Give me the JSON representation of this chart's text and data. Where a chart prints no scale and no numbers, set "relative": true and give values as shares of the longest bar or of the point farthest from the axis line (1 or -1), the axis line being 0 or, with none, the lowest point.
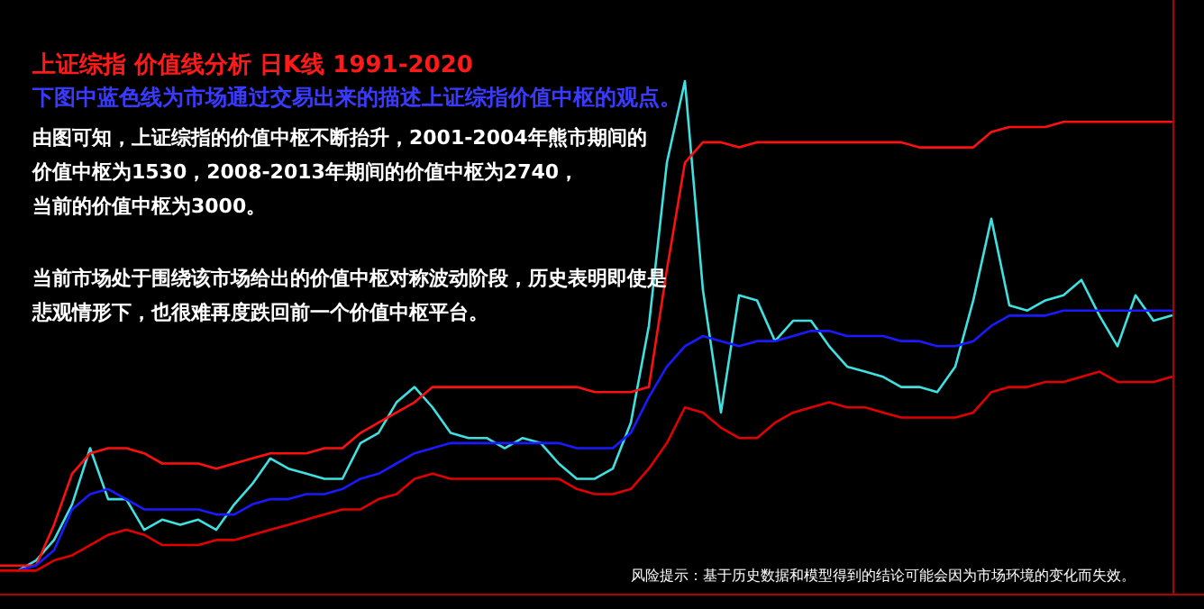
{
  "chart_data": {
    "type": "line",
    "relative": true,
    "title": "上证综指     价值线分析     日K线  1991-2020",
    "subtitle": "下图中蓝色线为市场通过交易出来的描述上证综指价值中枢的观点。",
    "annotations": [
      "由图可知，上证综指的价值中枢不断抬升，2001-2004年熊市期间的",
      "价值中枢为1530，2008-2013年期间的价值中枢为2740，",
      "当前的价值中枢为3000。",
      "当前市场处于围绕该市场给出的价值中枢对称波动阶段，历史表明即使是",
      "悲观情形下，也很难再度跌回前一个价值中枢平台。",
      "风险提示：基于历史数据和模型得到的结论可能会因为市场环境的变化而失效。"
    ],
    "categories": [
      null,
      null,
      null,
      null,
      null,
      null,
      null,
      null,
      null,
      null,
      null,
      null,
      null,
      null,
      null,
      null,
      null,
      null,
      null,
      null,
      null,
      null,
      null,
      null,
      null,
      null,
      null,
      null,
      null,
      null,
      null,
      null,
      null,
      null,
      null,
      null,
      null,
      null,
      null,
      null,
      null,
      null,
      null,
      null,
      null,
      null,
      null,
      null,
      null,
      null,
      null,
      null,
      null,
      null,
      null,
      null,
      null,
      null,
      null,
      null,
      null,
      null,
      null,
      null,
      null,
      null
    ],
    "series": [
      {
        "color": "#40e0e0",
        "values": [
          null,
          0.04,
          0.06,
          0.1,
          0.17,
          0.28,
          0.18,
          0.18,
          0.12,
          0.14,
          0.13,
          0.14,
          0.12,
          0.17,
          0.21,
          0.26,
          0.24,
          0.23,
          0.22,
          0.22,
          0.29,
          0.31,
          0.37,
          0.4,
          0.36,
          0.31,
          0.3,
          0.3,
          0.28,
          0.3,
          0.29,
          0.25,
          0.22,
          0.22,
          0.24,
          0.33,
          0.52,
          0.84,
          1,
          0.59,
          0.35,
          0.58,
          0.57,
          0.49,
          0.53,
          0.53,
          0.48,
          0.44,
          0.43,
          0.42,
          0.4,
          0.4,
          0.39,
          0.44,
          0.57,
          0.73,
          0.56,
          0.55,
          0.57,
          0.58,
          0.61,
          0.54,
          0.48,
          0.58,
          0.53,
          0.54
        ]
      },
      {
        "color": "#ff1010",
        "values": [
          0.05,
          0.05,
          0.05,
          0.13,
          0.23,
          0.27,
          0.28,
          0.28,
          0.27,
          0.25,
          0.25,
          0.25,
          0.24,
          0.25,
          0.26,
          0.27,
          0.27,
          0.27,
          0.28,
          0.28,
          0.31,
          0.33,
          0.35,
          0.37,
          0.4,
          0.4,
          0.4,
          0.4,
          0.4,
          0.4,
          0.4,
          0.4,
          0.4,
          0.39,
          0.39,
          0.39,
          0.4,
          0.63,
          0.84,
          0.88,
          0.88,
          0.87,
          0.88,
          0.88,
          0.88,
          0.88,
          0.88,
          0.88,
          0.88,
          0.88,
          0.88,
          0.87,
          0.87,
          0.87,
          0.87,
          0.9,
          0.91,
          0.91,
          0.91,
          0.92,
          0.92,
          0.92,
          0.92,
          0.92,
          0.92,
          0.92
        ]
      },
      {
        "color": "#1a1aff",
        "values": [
          null,
          0.04,
          0.05,
          0.08,
          0.16,
          0.19,
          0.2,
          0.18,
          0.16,
          0.16,
          0.16,
          0.16,
          0.15,
          0.15,
          0.17,
          0.18,
          0.18,
          0.19,
          0.19,
          0.2,
          0.22,
          0.23,
          0.25,
          0.27,
          0.28,
          0.29,
          0.29,
          0.29,
          0.29,
          0.29,
          0.29,
          0.29,
          0.28,
          0.28,
          0.28,
          0.31,
          0.38,
          0.44,
          0.48,
          0.5,
          0.49,
          0.48,
          0.49,
          0.49,
          0.5,
          0.51,
          0.51,
          0.5,
          0.5,
          0.5,
          0.49,
          0.49,
          0.48,
          0.48,
          0.49,
          0.52,
          0.54,
          0.54,
          0.54,
          0.55,
          0.55,
          0.55,
          0.55,
          0.55,
          0.55,
          0.55
        ]
      },
      {
        "color": "#e00000",
        "values": [
          0.04,
          0.04,
          0.04,
          0.06,
          0.07,
          0.09,
          0.11,
          0.12,
          0.11,
          0.09,
          0.09,
          0.09,
          0.1,
          0.1,
          0.11,
          0.12,
          0.13,
          0.14,
          0.15,
          0.16,
          0.16,
          0.18,
          0.19,
          0.22,
          0.23,
          0.22,
          0.22,
          0.22,
          0.22,
          0.22,
          0.22,
          0.22,
          0.2,
          0.19,
          0.19,
          0.2,
          0.24,
          0.29,
          0.36,
          0.35,
          0.32,
          0.3,
          0.3,
          0.33,
          0.35,
          0.36,
          0.37,
          0.36,
          0.36,
          0.35,
          0.34,
          0.34,
          0.34,
          0.34,
          0.35,
          0.39,
          0.4,
          0.4,
          0.41,
          0.41,
          0.42,
          0.43,
          0.41,
          0.41,
          0.41,
          0.42
        ]
      }
    ]
  }
}
